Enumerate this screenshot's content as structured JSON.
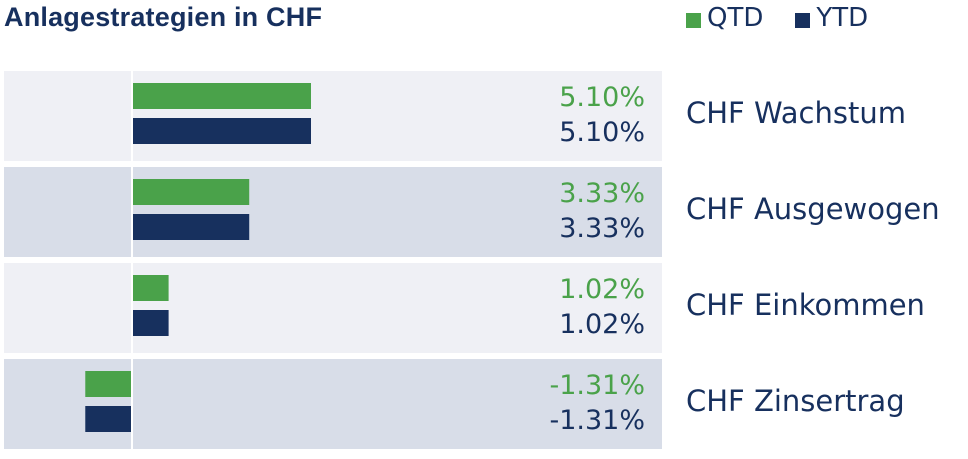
{
  "title": "Anlagestrategien in CHF",
  "legend": [
    {
      "label": "QTD",
      "color": "#4aa24a"
    },
    {
      "label": "YTD",
      "color": "#17305e"
    }
  ],
  "chart_data": {
    "type": "bar",
    "orientation": "horizontal",
    "title": "Anlagestrategien in CHF",
    "categories": [
      "CHF Wachstum",
      "CHF Ausgewogen",
      "CHF Einkommen",
      "CHF Zinsertrag"
    ],
    "series": [
      {
        "name": "QTD",
        "color": "#4aa24a",
        "values": [
          5.1,
          3.33,
          1.02,
          -1.31
        ],
        "labels": [
          "5.10%",
          "3.33%",
          "1.02%",
          "-1.31%"
        ]
      },
      {
        "name": "YTD",
        "color": "#17305e",
        "values": [
          5.1,
          3.33,
          1.02,
          -1.31
        ],
        "labels": [
          "5.10%",
          "3.33%",
          "1.02%",
          "-1.31%"
        ]
      }
    ],
    "unit": "%",
    "row_backgrounds": [
      "#eff0f5",
      "#d8dde8",
      "#eff0f5",
      "#d8dde8"
    ],
    "legend_position": "top-right",
    "grid": false
  }
}
